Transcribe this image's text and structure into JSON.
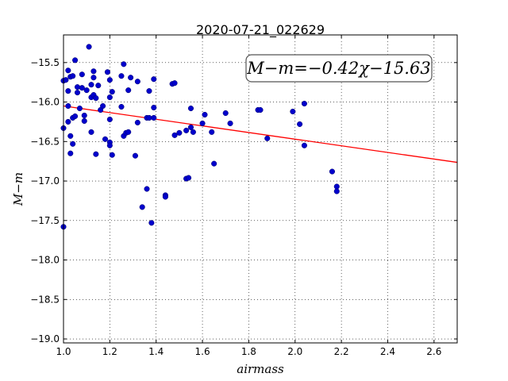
{
  "chart_data": {
    "type": "scatter",
    "title": "2020-07-21_022629",
    "xlabel": "airmass",
    "ylabel": "M−m",
    "xlim": [
      1.0,
      2.7
    ],
    "ylim": [
      -19.05,
      -15.15
    ],
    "y_inverted": true,
    "grid": true,
    "x_ticks": [
      1.0,
      1.2,
      1.4,
      1.6,
      1.8,
      2.0,
      2.2,
      2.4,
      2.6
    ],
    "x_tick_labels": [
      "1.0",
      "1.2",
      "1.4",
      "1.6",
      "1.8",
      "2.0",
      "2.2",
      "2.4",
      "2.6"
    ],
    "y_ticks": [
      -15.5,
      -16.0,
      -16.5,
      -17.0,
      -17.5,
      -18.0,
      -18.5,
      -19.0
    ],
    "y_tick_labels": [
      "−15.5",
      "−16.0",
      "−16.5",
      "−17.0",
      "−17.5",
      "−18.0",
      "−18.5",
      "−19.0"
    ],
    "fit_label": "M−m=−0.42χ−15.63",
    "fit_line": {
      "slope": -0.42,
      "intercept": -15.63,
      "color": "#ff0000"
    },
    "point_color": "#0000cc",
    "points": [
      [
        1.0,
        -15.73
      ],
      [
        1.0,
        -16.33
      ],
      [
        1.0,
        -17.58
      ],
      [
        1.01,
        -15.72
      ],
      [
        1.02,
        -15.6
      ],
      [
        1.02,
        -16.05
      ],
      [
        1.02,
        -15.86
      ],
      [
        1.02,
        -16.25
      ],
      [
        1.03,
        -16.65
      ],
      [
        1.03,
        -16.43
      ],
      [
        1.03,
        -15.68
      ],
      [
        1.04,
        -16.2
      ],
      [
        1.04,
        -15.67
      ],
      [
        1.04,
        -16.53
      ],
      [
        1.05,
        -15.47
      ],
      [
        1.05,
        -16.18
      ],
      [
        1.06,
        -15.81
      ],
      [
        1.06,
        -15.88
      ],
      [
        1.07,
        -16.08
      ],
      [
        1.08,
        -15.65
      ],
      [
        1.08,
        -15.82
      ],
      [
        1.09,
        -16.17
      ],
      [
        1.09,
        -16.24
      ],
      [
        1.1,
        -15.85
      ],
      [
        1.11,
        -15.3
      ],
      [
        1.12,
        -15.94
      ],
      [
        1.12,
        -15.78
      ],
      [
        1.12,
        -16.38
      ],
      [
        1.13,
        -15.61
      ],
      [
        1.13,
        -15.69
      ],
      [
        1.13,
        -15.91
      ],
      [
        1.14,
        -16.66
      ],
      [
        1.14,
        -15.95
      ],
      [
        1.15,
        -15.79
      ],
      [
        1.16,
        -16.1
      ],
      [
        1.17,
        -16.05
      ],
      [
        1.18,
        -16.47
      ],
      [
        1.19,
        -15.62
      ],
      [
        1.2,
        -15.94
      ],
      [
        1.2,
        -16.22
      ],
      [
        1.2,
        -16.51
      ],
      [
        1.2,
        -16.55
      ],
      [
        1.2,
        -15.72
      ],
      [
        1.21,
        -15.87
      ],
      [
        1.21,
        -16.67
      ],
      [
        1.25,
        -15.67
      ],
      [
        1.25,
        -16.06
      ],
      [
        1.26,
        -16.43
      ],
      [
        1.26,
        -15.52
      ],
      [
        1.27,
        -16.39
      ],
      [
        1.28,
        -15.85
      ],
      [
        1.28,
        -16.38
      ],
      [
        1.29,
        -15.69
      ],
      [
        1.31,
        -16.68
      ],
      [
        1.32,
        -15.74
      ],
      [
        1.32,
        -16.26
      ],
      [
        1.34,
        -17.33
      ],
      [
        1.36,
        -16.2
      ],
      [
        1.36,
        -17.1
      ],
      [
        1.37,
        -15.86
      ],
      [
        1.37,
        -16.2
      ],
      [
        1.38,
        -17.53
      ],
      [
        1.39,
        -16.2
      ],
      [
        1.39,
        -15.71
      ],
      [
        1.39,
        -16.07
      ],
      [
        1.44,
        -17.18
      ],
      [
        1.44,
        -17.2
      ],
      [
        1.47,
        -15.77
      ],
      [
        1.48,
        -15.76
      ],
      [
        1.48,
        -16.42
      ],
      [
        1.5,
        -16.39
      ],
      [
        1.53,
        -16.36
      ],
      [
        1.53,
        -16.97
      ],
      [
        1.54,
        -16.96
      ],
      [
        1.55,
        -16.32
      ],
      [
        1.55,
        -16.08
      ],
      [
        1.56,
        -16.38
      ],
      [
        1.6,
        -16.27
      ],
      [
        1.61,
        -16.16
      ],
      [
        1.64,
        -16.38
      ],
      [
        1.65,
        -16.78
      ],
      [
        1.7,
        -16.14
      ],
      [
        1.72,
        -16.27
      ],
      [
        1.84,
        -16.1
      ],
      [
        1.85,
        -16.1
      ],
      [
        1.88,
        -16.46
      ],
      [
        1.99,
        -16.12
      ],
      [
        2.02,
        -16.28
      ],
      [
        2.04,
        -16.02
      ],
      [
        2.04,
        -16.55
      ],
      [
        2.16,
        -16.88
      ],
      [
        2.18,
        -17.07
      ],
      [
        2.18,
        -17.13
      ]
    ]
  }
}
